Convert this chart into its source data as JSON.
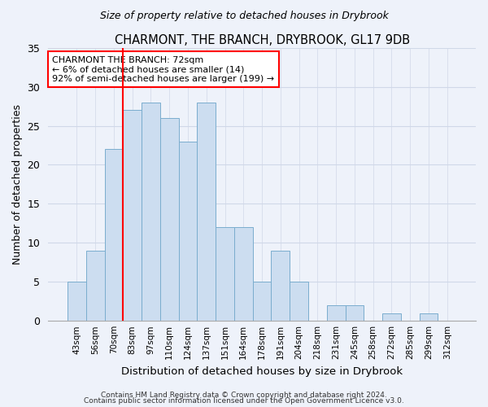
{
  "title": "CHARMONT, THE BRANCH, DRYBROOK, GL17 9DB",
  "subtitle": "Size of property relative to detached houses in Drybrook",
  "xlabel": "Distribution of detached houses by size in Drybrook",
  "ylabel": "Number of detached properties",
  "bar_labels": [
    "43sqm",
    "56sqm",
    "70sqm",
    "83sqm",
    "97sqm",
    "110sqm",
    "124sqm",
    "137sqm",
    "151sqm",
    "164sqm",
    "178sqm",
    "191sqm",
    "204sqm",
    "218sqm",
    "231sqm",
    "245sqm",
    "258sqm",
    "272sqm",
    "285sqm",
    "299sqm",
    "312sqm"
  ],
  "bar_values": [
    5,
    9,
    22,
    27,
    28,
    26,
    23,
    28,
    12,
    12,
    5,
    9,
    5,
    0,
    2,
    2,
    0,
    1,
    0,
    1,
    0
  ],
  "bar_color": "#ccddf0",
  "bar_edge_color": "#7aadce",
  "vline_x": 2.5,
  "vline_color": "red",
  "annotation_text": "CHARMONT THE BRANCH: 72sqm\n← 6% of detached houses are smaller (14)\n92% of semi-detached houses are larger (199) →",
  "annotation_box_color": "white",
  "annotation_box_edge": "red",
  "ylim": [
    0,
    35
  ],
  "yticks": [
    0,
    5,
    10,
    15,
    20,
    25,
    30,
    35
  ],
  "footer1": "Contains HM Land Registry data © Crown copyright and database right 2024.",
  "footer2": "Contains public sector information licensed under the Open Government Licence v3.0.",
  "background_color": "#eef2fa",
  "grid_color": "#d0d8e8",
  "title_fontsize": 10.5,
  "subtitle_fontsize": 9,
  "ylabel_fontsize": 9,
  "xlabel_fontsize": 9.5
}
